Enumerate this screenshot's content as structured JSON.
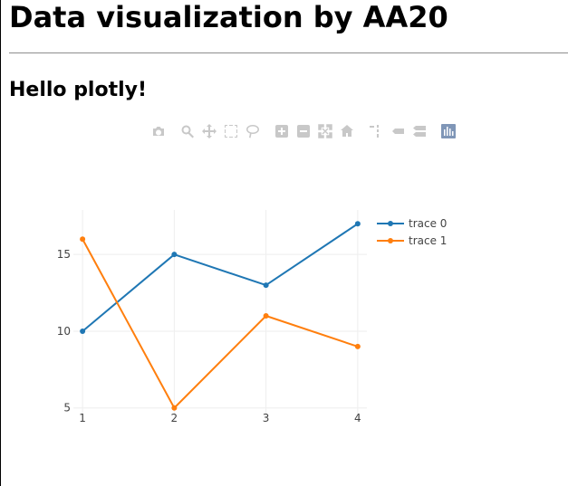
{
  "page": {
    "title": "Data visualization by AA20",
    "subtitle": "Hello plotly!"
  },
  "modebar": {
    "buttons": [
      "camera-icon",
      "zoom-icon",
      "pan-icon",
      "box-select-icon",
      "lasso-select-icon",
      "zoom-in-icon",
      "zoom-out-icon",
      "autoscale-icon",
      "reset-axes-icon",
      "spike-lines-icon",
      "hover-closest-icon",
      "hover-compare-icon",
      "plotly-logo-icon"
    ]
  },
  "chart_data": {
    "type": "line",
    "x": [
      1,
      2,
      3,
      4
    ],
    "series": [
      {
        "name": "trace 0",
        "values": [
          10,
          15,
          13,
          17
        ],
        "color": "#1f77b4"
      },
      {
        "name": "trace 1",
        "values": [
          16,
          5,
          11,
          9
        ],
        "color": "#ff7f0e"
      }
    ],
    "xticks": [
      "1",
      "2",
      "3",
      "4"
    ],
    "yticks": [
      5,
      10,
      15
    ],
    "ylabels": [
      "5",
      "10",
      "15"
    ],
    "xlim": [
      0.9,
      4.1
    ],
    "ylim": [
      4.1,
      17.9
    ],
    "grid": true,
    "legend": "top-right",
    "title": "",
    "xlabel": "",
    "ylabel": ""
  }
}
